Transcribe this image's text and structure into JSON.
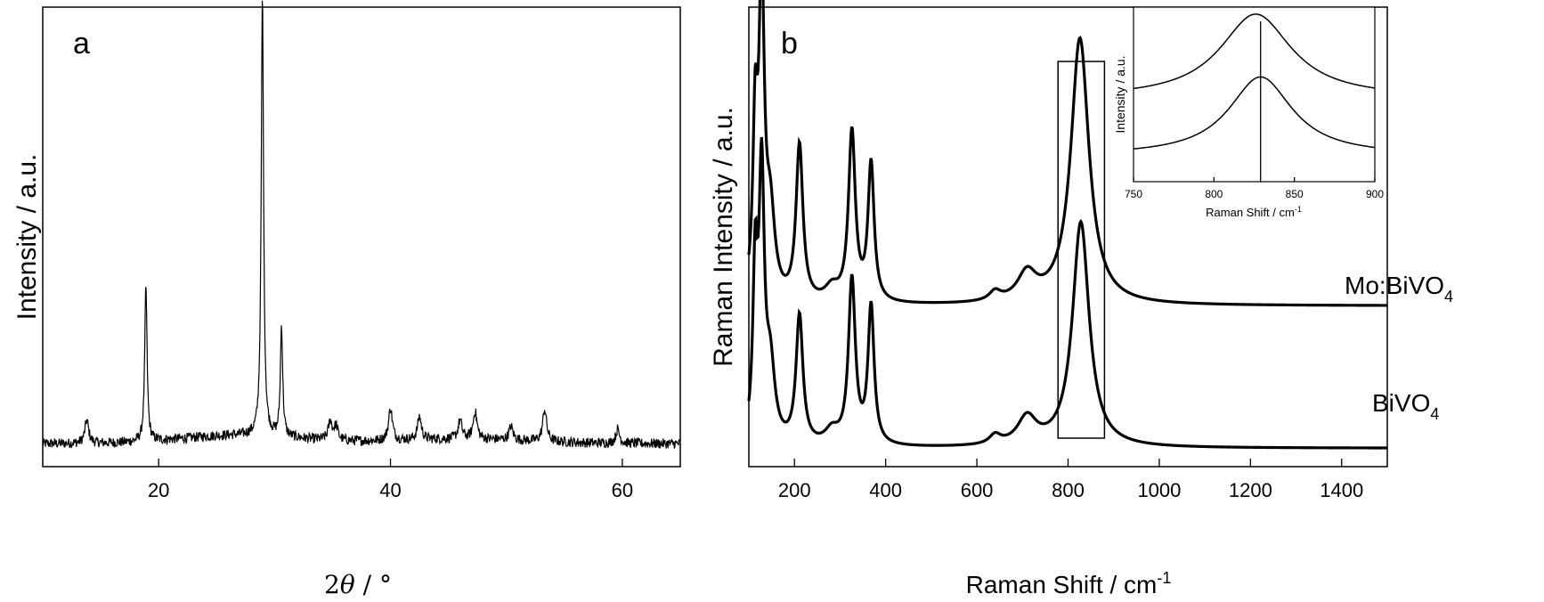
{
  "chart_data": [
    {
      "panel": "a",
      "type": "line",
      "xlabel_prefix": "2",
      "xlabel_theta": "θ",
      "xlabel_suffix": " / °",
      "ylabel": "Intensity / a.u.",
      "xlim": [
        10,
        65
      ],
      "ylim": [
        0,
        1
      ],
      "xticks": [
        20,
        40,
        60
      ],
      "y_ticks_labeled": false,
      "color": "#000000",
      "baseline": 0.05,
      "peaks": [
        {
          "x": 13.8,
          "h": 0.05
        },
        {
          "x": 18.9,
          "h": 0.34
        },
        {
          "x": 28.95,
          "h": 0.96
        },
        {
          "x": 30.6,
          "h": 0.24
        },
        {
          "x": 34.8,
          "h": 0.04
        },
        {
          "x": 35.3,
          "h": 0.03
        },
        {
          "x": 40.0,
          "h": 0.07
        },
        {
          "x": 42.5,
          "h": 0.05
        },
        {
          "x": 46.0,
          "h": 0.04
        },
        {
          "x": 47.3,
          "h": 0.06
        },
        {
          "x": 50.4,
          "h": 0.03
        },
        {
          "x": 53.3,
          "h": 0.07
        },
        {
          "x": 59.6,
          "h": 0.03
        }
      ]
    },
    {
      "panel": "b",
      "type": "line",
      "xlabel": "Raman Shift / cm",
      "xlabel_superscript": "-1",
      "ylabel": "Raman Intensity / a.u.",
      "xlim": [
        100,
        1500
      ],
      "ylim": [
        0,
        1
      ],
      "xticks": [
        200,
        400,
        600,
        800,
        1000,
        1200,
        1400
      ],
      "y_ticks_labeled": false,
      "color": "#000000",
      "series": [
        {
          "name": "Mo:BiVO",
          "subscript": "4",
          "offset": 0.35,
          "peaks": [
            {
              "x": 114,
              "h": 0.36,
              "w": 6
            },
            {
              "x": 128,
              "h": 0.68,
              "w": 7
            },
            {
              "x": 147,
              "h": 0.18,
              "w": 12
            },
            {
              "x": 211,
              "h": 0.34,
              "w": 9
            },
            {
              "x": 282,
              "h": 0.03,
              "w": 18
            },
            {
              "x": 326,
              "h": 0.37,
              "w": 9
            },
            {
              "x": 368,
              "h": 0.3,
              "w": 8
            },
            {
              "x": 640,
              "h": 0.02,
              "w": 15
            },
            {
              "x": 710,
              "h": 0.06,
              "w": 25
            },
            {
              "x": 826,
              "h": 0.58,
              "w": 24
            }
          ]
        },
        {
          "name": "BiVO",
          "subscript": "4",
          "offset": 0.04,
          "peaks": [
            {
              "x": 114,
              "h": 0.36,
              "w": 6
            },
            {
              "x": 128,
              "h": 0.57,
              "w": 7
            },
            {
              "x": 147,
              "h": 0.16,
              "w": 12
            },
            {
              "x": 211,
              "h": 0.28,
              "w": 9
            },
            {
              "x": 282,
              "h": 0.03,
              "w": 18
            },
            {
              "x": 326,
              "h": 0.36,
              "w": 9
            },
            {
              "x": 368,
              "h": 0.3,
              "w": 8
            },
            {
              "x": 640,
              "h": 0.02,
              "w": 15
            },
            {
              "x": 710,
              "h": 0.06,
              "w": 25
            },
            {
              "x": 828,
              "h": 0.49,
              "w": 22
            }
          ]
        }
      ],
      "highlight_box": {
        "x_range": [
          778,
          880
        ]
      },
      "inset": {
        "type": "line",
        "xlabel": "Raman Shift / cm",
        "xlabel_superscript": "-1",
        "ylabel": "Intensity / a.u.",
        "xlim": [
          750,
          900
        ],
        "ylim": [
          0,
          1
        ],
        "xticks": [
          750,
          800,
          850,
          900
        ],
        "reference_line_x": 829,
        "series": [
          {
            "offset": 0.48,
            "center": 826,
            "h": 0.48,
            "w": 27
          },
          {
            "offset": 0.15,
            "center": 829,
            "h": 0.45,
            "w": 24
          }
        ]
      }
    }
  ]
}
